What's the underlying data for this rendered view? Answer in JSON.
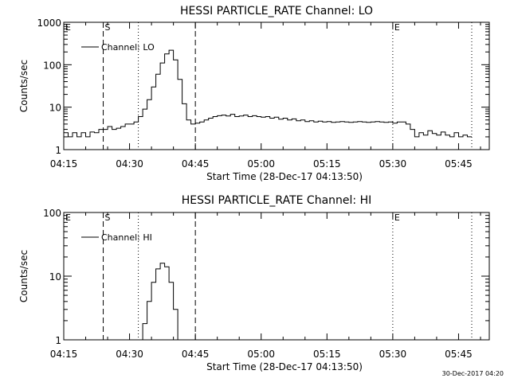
{
  "footer_timestamp": "30-Dec-2017 04:20",
  "chart_data": [
    {
      "type": "line",
      "title": "HESSI PARTICLE_RATE Channel: LO",
      "xlabel": "Start Time (28-Dec-17 04:13:50)",
      "ylabel": "Counts/sec",
      "y_scale": "log",
      "ylim": [
        1,
        1000
      ],
      "y_ticks": [
        1,
        10,
        100,
        1000
      ],
      "y_tick_labels": [
        "1",
        "10",
        "100",
        "1000"
      ],
      "xlim": [
        "04:15",
        "05:52"
      ],
      "x_tick_labels": [
        "04:15",
        "04:30",
        "04:45",
        "05:00",
        "05:15",
        "05:30",
        "05:45"
      ],
      "legend": {
        "label": "Channel: LO",
        "placement": "top-left"
      },
      "markers": [
        {
          "label": "E",
          "time": "04:15",
          "style": "dotted"
        },
        {
          "label": "S",
          "time": "04:24",
          "style": "dashed"
        },
        {
          "label": "",
          "time": "04:32",
          "style": "dotted"
        },
        {
          "label": "",
          "time": "04:45",
          "style": "dashed"
        },
        {
          "label": "E",
          "time": "05:30",
          "style": "dotted"
        },
        {
          "label": "",
          "time": "05:48",
          "style": "dotted"
        }
      ],
      "series": [
        {
          "x": [
            "04:15",
            "04:16",
            "04:17",
            "04:18",
            "04:19",
            "04:20",
            "04:21",
            "04:22",
            "04:23",
            "04:24",
            "04:25",
            "04:26",
            "04:27",
            "04:28",
            "04:29",
            "04:30",
            "04:31",
            "04:32",
            "04:33",
            "04:34",
            "04:35",
            "04:36",
            "04:37",
            "04:38",
            "04:39",
            "04:40",
            "04:41",
            "04:42",
            "04:43",
            "04:44",
            "04:45",
            "04:46",
            "04:47",
            "04:48",
            "04:49",
            "04:50",
            "04:51",
            "04:52",
            "04:53",
            "04:54",
            "04:55",
            "04:56",
            "04:57",
            "04:58",
            "04:59",
            "05:00",
            "05:01",
            "05:02",
            "05:03",
            "05:04",
            "05:05",
            "05:06",
            "05:07",
            "05:08",
            "05:09",
            "05:10",
            "05:11",
            "05:12",
            "05:13",
            "05:14",
            "05:15",
            "05:16",
            "05:17",
            "05:18",
            "05:19",
            "05:20",
            "05:21",
            "05:22",
            "05:23",
            "05:24",
            "05:25",
            "05:26",
            "05:27",
            "05:28",
            "05:29",
            "05:30",
            "05:31",
            "05:32",
            "05:33",
            "05:34",
            "05:35",
            "05:36",
            "05:37",
            "05:38",
            "05:39",
            "05:40",
            "05:41",
            "05:42",
            "05:43",
            "05:44",
            "05:45",
            "05:46",
            "05:47",
            "05:48"
          ],
          "values": [
            2.5,
            2,
            2.5,
            2,
            2.5,
            2,
            2.6,
            2.5,
            3,
            3,
            3.5,
            3,
            3.2,
            3.5,
            4,
            4,
            4.5,
            6,
            9,
            15,
            30,
            60,
            110,
            180,
            220,
            130,
            45,
            12,
            5,
            4,
            4.2,
            4.5,
            5,
            5.5,
            6,
            6.3,
            6.5,
            6.2,
            6.8,
            6,
            6.2,
            6.5,
            6,
            6.3,
            6,
            5.8,
            6,
            5.5,
            5.8,
            5.2,
            5.5,
            5,
            5.3,
            4.8,
            5,
            4.6,
            4.8,
            4.5,
            4.7,
            4.5,
            4.6,
            4.4,
            4.5,
            4.6,
            4.5,
            4.4,
            4.5,
            4.6,
            4.5,
            4.4,
            4.5,
            4.6,
            4.5,
            4.4,
            4.5,
            4.2,
            4.5,
            4.5,
            4,
            3,
            2,
            2.5,
            2.2,
            2.8,
            2.4,
            2.2,
            2.6,
            2.2,
            2,
            2.5,
            2,
            2.2,
            2,
            2
          ]
        }
      ]
    },
    {
      "type": "line",
      "title": "HESSI PARTICLE_RATE Channel: HI",
      "xlabel": "Start Time (28-Dec-17 04:13:50)",
      "ylabel": "Counts/sec",
      "y_scale": "log",
      "ylim": [
        1,
        100
      ],
      "y_ticks": [
        1,
        10,
        100
      ],
      "y_tick_labels": [
        "1",
        "10",
        "100"
      ],
      "xlim": [
        "04:15",
        "05:52"
      ],
      "x_tick_labels": [
        "04:15",
        "04:30",
        "04:45",
        "05:00",
        "05:15",
        "05:30",
        "05:45"
      ],
      "legend": {
        "label": "Channel: HI",
        "placement": "top-left"
      },
      "markers": [
        {
          "label": "E",
          "time": "04:15",
          "style": "dotted"
        },
        {
          "label": "S",
          "time": "04:24",
          "style": "dashed"
        },
        {
          "label": "",
          "time": "04:32",
          "style": "dotted"
        },
        {
          "label": "",
          "time": "04:45",
          "style": "dashed"
        },
        {
          "label": "E",
          "time": "05:30",
          "style": "dotted"
        },
        {
          "label": "",
          "time": "05:48",
          "style": "dotted"
        }
      ],
      "series": [
        {
          "x": [
            "04:32",
            "04:33",
            "04:34",
            "04:35",
            "04:36",
            "04:37",
            "04:38",
            "04:39",
            "04:40",
            "04:41"
          ],
          "values": [
            1,
            1.8,
            4,
            8,
            13,
            16,
            14,
            8,
            3,
            1
          ]
        }
      ]
    }
  ]
}
